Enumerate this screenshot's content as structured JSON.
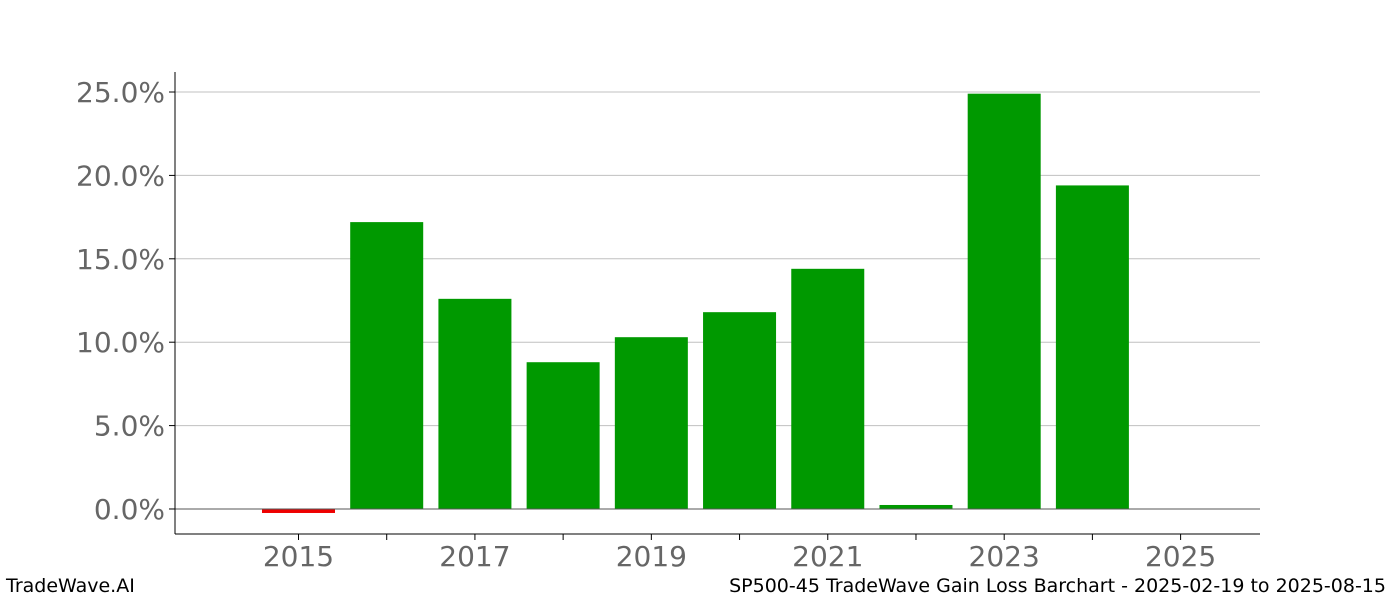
{
  "footer": {
    "brand": "TradeWave.AI",
    "caption": "SP500-45 TradeWave Gain Loss Barchart - 2025-02-19 to 2025-08-15"
  },
  "colors": {
    "gain": "#009900",
    "loss": "#ee0000",
    "tick_text": "#666666",
    "grid": "#c0c0c0",
    "axis": "#000000"
  },
  "chart_data": {
    "type": "bar",
    "title": "",
    "xlabel": "",
    "ylabel": "",
    "x_tick_labels": [
      "2015",
      "2017",
      "2019",
      "2021",
      "2023",
      "2025"
    ],
    "y_tick_labels": [
      "0.0%",
      "5.0%",
      "10.0%",
      "15.0%",
      "20.0%",
      "25.0%"
    ],
    "y_ticks": [
      0,
      5,
      10,
      15,
      20,
      25
    ],
    "x_ticks": [
      2015,
      2016,
      2017,
      2018,
      2019,
      2020,
      2021,
      2022,
      2023,
      2024,
      2025
    ],
    "xlim": [
      2013.6,
      2025.9
    ],
    "ylim": [
      -1.5,
      26.2
    ],
    "grid": "horizontal",
    "categories": [
      "2015",
      "2016",
      "2017",
      "2018",
      "2019",
      "2020",
      "2021",
      "2022",
      "2023",
      "2024"
    ],
    "values": [
      -0.2,
      17.2,
      12.6,
      8.8,
      10.3,
      11.8,
      14.4,
      0.2,
      24.9,
      19.4
    ],
    "years": [
      2015,
      2016,
      2017,
      2018,
      2019,
      2020,
      2021,
      2022,
      2023,
      2024
    ]
  }
}
